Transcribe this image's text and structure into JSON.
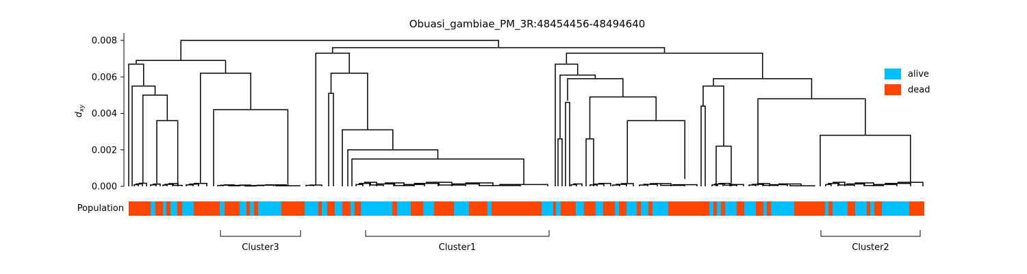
{
  "chart_data": {
    "type": "dendrogram",
    "title": "Obuasi_gambiae_PM_3R:48454456-48494640",
    "ylabel_base": "d",
    "ylabel_sub": "xy",
    "ylim": [
      0,
      0.0084
    ],
    "y_ticks": [
      "0.000",
      "0.002",
      "0.004",
      "0.006",
      "0.008"
    ],
    "y_tick_values": [
      0.0,
      0.002,
      0.004,
      0.006,
      0.008
    ],
    "population_label": "Population",
    "legend": {
      "placement": "right",
      "items": [
        {
          "label": "alive",
          "color": "#00bfff"
        },
        {
          "label": "dead",
          "color": "#ff4500"
        }
      ]
    },
    "population_colors": {
      "alive": "#00bfff",
      "dead": "#ff4500"
    },
    "clusters": [
      {
        "label": "Cluster3"
      },
      {
        "label": "Cluster1"
      },
      {
        "label": "Cluster2"
      }
    ],
    "merge_heights": {
      "root": 0.008,
      "left_top": 0.0069,
      "left_a": 0.0067,
      "left_a2": 0.0055,
      "left_a3": 0.005,
      "left_a4": 0.0036,
      "left_b": 0.0062,
      "cluster3_group": 0.0042,
      "right_top": 0.0076,
      "cluster1_top": 0.0073,
      "cluster1_a": 0.0062,
      "cluster1_b": 0.0051,
      "cluster1_c": 0.0031,
      "cluster1_d": 0.002,
      "cluster1_e": 0.0015,
      "right2_top": 0.0073,
      "right2_a": 0.0067,
      "right2_b": 0.0061,
      "right2_c": 0.0059,
      "right2_d": 0.0049,
      "right2_e": 0.0036,
      "right2_f": 0.0026,
      "right3_top": 0.0059,
      "right3_a": 0.0055,
      "right3_b": 0.0044,
      "right3_c": 0.0022,
      "cluster2_top": 0.0048,
      "cluster2_a": 0.0028
    }
  }
}
